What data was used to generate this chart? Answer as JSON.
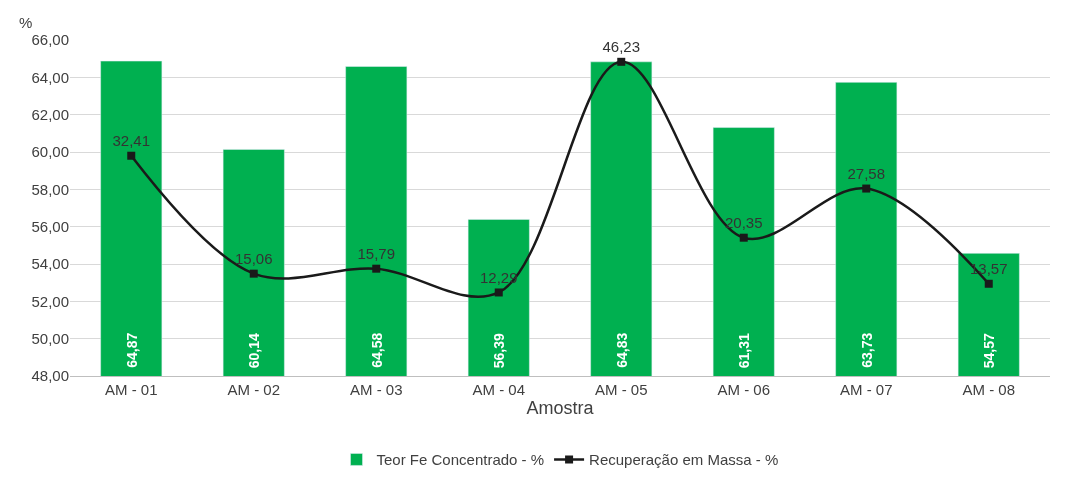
{
  "chart_data": {
    "type": "bar",
    "xlabel": "Amostra",
    "ylabel": "%",
    "categories": [
      "AM - 01",
      "AM - 02",
      "AM - 03",
      "AM - 04",
      "AM - 05",
      "AM - 06",
      "AM - 07",
      "AM - 08"
    ],
    "series": [
      {
        "name": "Teor Fe Concentrado - %",
        "color": "#00b050",
        "values": [
          64.87,
          60.14,
          64.58,
          56.39,
          64.83,
          61.31,
          63.73,
          54.57
        ],
        "value_labels": [
          "64,87",
          "60,14",
          "64,58",
          "56,39",
          "64,83",
          "61,31",
          "63,73",
          "54,57"
        ]
      },
      {
        "name": "Recuperação em Massa - %",
        "type": "line",
        "axis": "y2",
        "color": "#1a1a1a",
        "marker": "square",
        "values": [
          32.41,
          15.06,
          15.79,
          12.29,
          46.23,
          20.35,
          27.58,
          13.57
        ],
        "value_labels": [
          "32,41",
          "15,06",
          "15,79",
          "12,29",
          "46,23",
          "20,35",
          "27,58",
          "13,57"
        ]
      }
    ],
    "ylim": [
      48,
      66
    ],
    "yticks": [
      {
        "value": 48,
        "label": "48,00"
      },
      {
        "value": 50,
        "label": "50,00"
      },
      {
        "value": 52,
        "label": "52,00"
      },
      {
        "value": 54,
        "label": "54,00"
      },
      {
        "value": 56,
        "label": "56,00"
      },
      {
        "value": 58,
        "label": "58,00"
      },
      {
        "value": 60,
        "label": "60,00"
      },
      {
        "value": 62,
        "label": "62,00"
      },
      {
        "value": 64,
        "label": "64,00"
      },
      {
        "value": 66,
        "label": "66,00"
      }
    ],
    "grid": "y",
    "legend": "bottom"
  }
}
